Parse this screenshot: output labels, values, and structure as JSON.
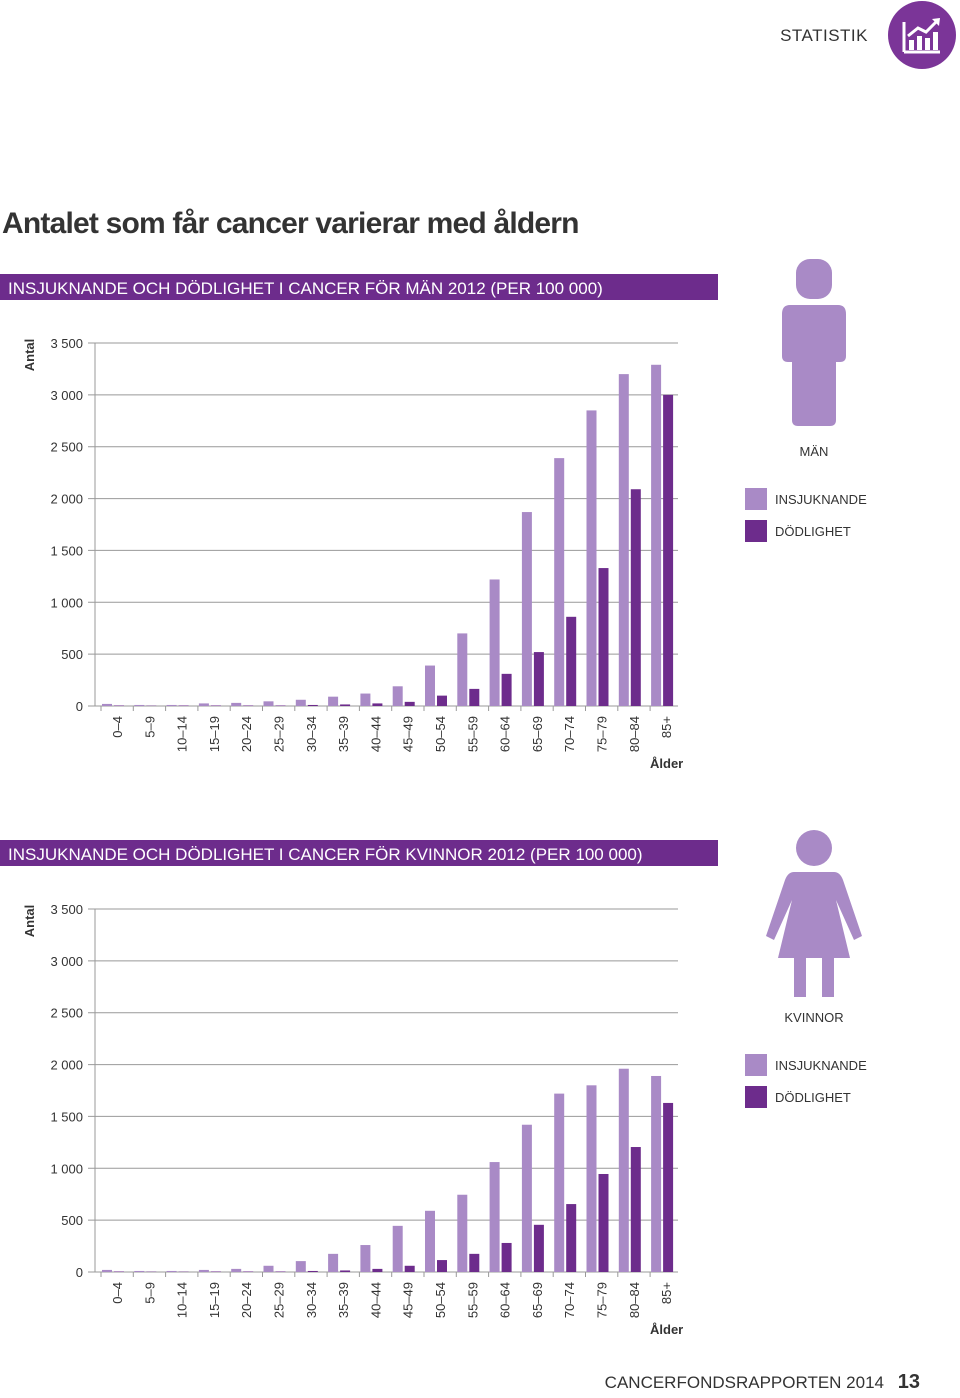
{
  "section": "STATISTIK",
  "heading": "Antalet som får cancer varierar med åldern",
  "footer": {
    "report": "CANCERFONDSRAPPORTEN 2014",
    "page": "13"
  },
  "chart_data": [
    {
      "type": "bar",
      "title": "INSJUKNANDE OCH DÖDLIGHET I CANCER FÖR MÄN 2012 (PER 100 000)",
      "y_label": "Antal",
      "x_label": "Ålder",
      "legend_title": "MÄN",
      "grid": true,
      "categories": [
        "0–4",
        "5–9",
        "10–14",
        "15–19",
        "20–24",
        "25–29",
        "30–34",
        "35–39",
        "40–44",
        "45–49",
        "50–54",
        "55–59",
        "60–64",
        "65–69",
        "70–74",
        "75–79",
        "80–84",
        "85+"
      ],
      "series": [
        {
          "name": "INSJUKNANDE",
          "color": "#a98ac6",
          "values": [
            20,
            10,
            10,
            25,
            30,
            45,
            60,
            90,
            120,
            190,
            390,
            700,
            1220,
            1870,
            2390,
            2850,
            3200,
            3290
          ]
        },
        {
          "name": "DÖDLIGHET",
          "color": "#6d2c8c",
          "values": [
            5,
            3,
            5,
            5,
            5,
            5,
            10,
            15,
            25,
            40,
            100,
            165,
            310,
            520,
            860,
            1330,
            2090,
            3000
          ]
        }
      ],
      "ylim": [
        0,
        3500
      ],
      "yticks": [
        0,
        500,
        {
          "value": 1000,
          "label": "1 000"
        },
        {
          "value": 1500,
          "label": "1 500"
        },
        {
          "value": 2000,
          "label": "2 000"
        },
        {
          "value": 2500,
          "label": "2 500"
        },
        {
          "value": 3000,
          "label": "3 000"
        },
        {
          "value": 3500,
          "label": "3 500"
        }
      ]
    },
    {
      "type": "bar",
      "title": "INSJUKNANDE OCH DÖDLIGHET I CANCER FÖR KVINNOR 2012 (PER 100 000)",
      "y_label": "Antal",
      "x_label": "Ålder",
      "legend_title": "KVINNOR",
      "grid": true,
      "categories": [
        "0–4",
        "5–9",
        "10–14",
        "15–19",
        "20–24",
        "25–29",
        "30–34",
        "35–39",
        "40–44",
        "45–49",
        "50–54",
        "55–59",
        "60–64",
        "65–69",
        "70–74",
        "75–79",
        "80–84",
        "85+"
      ],
      "series": [
        {
          "name": "INSJUKNANDE",
          "color": "#a98ac6",
          "values": [
            20,
            10,
            10,
            20,
            30,
            60,
            105,
            175,
            260,
            445,
            590,
            745,
            1060,
            1420,
            1720,
            1800,
            1960,
            1890
          ]
        },
        {
          "name": "DÖDLIGHET",
          "color": "#6d2c8c",
          "values": [
            5,
            3,
            3,
            5,
            5,
            5,
            10,
            15,
            30,
            60,
            115,
            175,
            280,
            455,
            655,
            945,
            1205,
            1630
          ]
        }
      ],
      "ylim": [
        0,
        3500
      ],
      "yticks": [
        0,
        500,
        {
          "value": 1000,
          "label": "1 000"
        },
        {
          "value": 1500,
          "label": "1 500"
        },
        {
          "value": 2000,
          "label": "2 000"
        },
        {
          "value": 2500,
          "label": "2 500"
        },
        {
          "value": 3000,
          "label": "3 000"
        },
        {
          "value": 3500,
          "label": "3 500"
        }
      ]
    }
  ]
}
